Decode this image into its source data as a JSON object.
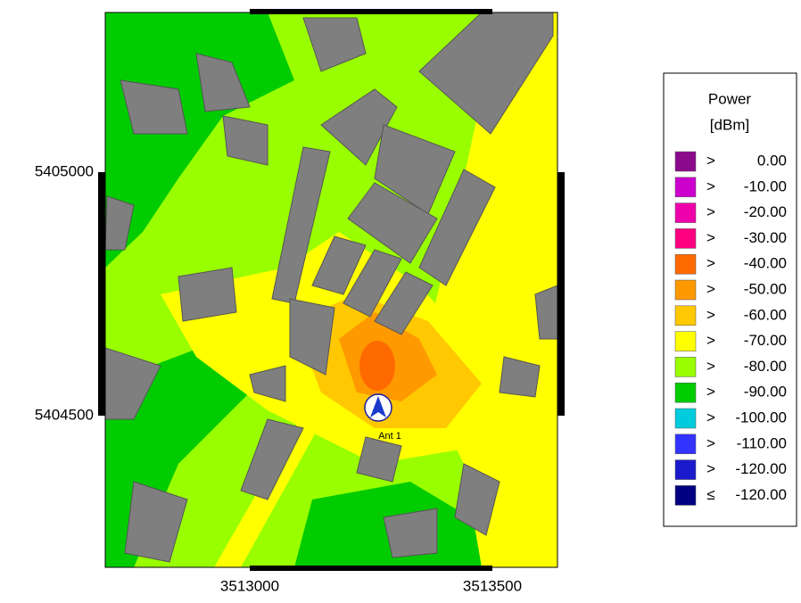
{
  "map": {
    "y_ticks": [
      "5405000",
      "5404500"
    ],
    "x_ticks": [
      "3513000",
      "3513500"
    ],
    "antenna_label": "Ant 1"
  },
  "legend": {
    "title": "Power",
    "unit": "[dBm]",
    "entries": [
      {
        "symbol": ">",
        "value": "0.00",
        "color": "#8b0a8b"
      },
      {
        "symbol": ">",
        "value": "-10.00",
        "color": "#cc00cc"
      },
      {
        "symbol": ">",
        "value": "-20.00",
        "color": "#ee00aa"
      },
      {
        "symbol": ">",
        "value": "-30.00",
        "color": "#ff0080"
      },
      {
        "symbol": ">",
        "value": "-40.00",
        "color": "#ff6a00"
      },
      {
        "symbol": ">",
        "value": "-50.00",
        "color": "#ff9900"
      },
      {
        "symbol": ">",
        "value": "-60.00",
        "color": "#ffc800"
      },
      {
        "symbol": ">",
        "value": "-70.00",
        "color": "#ffff00"
      },
      {
        "symbol": ">",
        "value": "-80.00",
        "color": "#99ff00"
      },
      {
        "symbol": ">",
        "value": "-90.00",
        "color": "#00cc00"
      },
      {
        "symbol": ">",
        "value": "-100.00",
        "color": "#00ccdd"
      },
      {
        "symbol": ">",
        "value": "-110.00",
        "color": "#3333ff"
      },
      {
        "symbol": ">",
        "value": "-120.00",
        "color": "#1a1acc"
      },
      {
        "symbol": "≤",
        "value": "-120.00",
        "color": "#000080"
      }
    ]
  }
}
